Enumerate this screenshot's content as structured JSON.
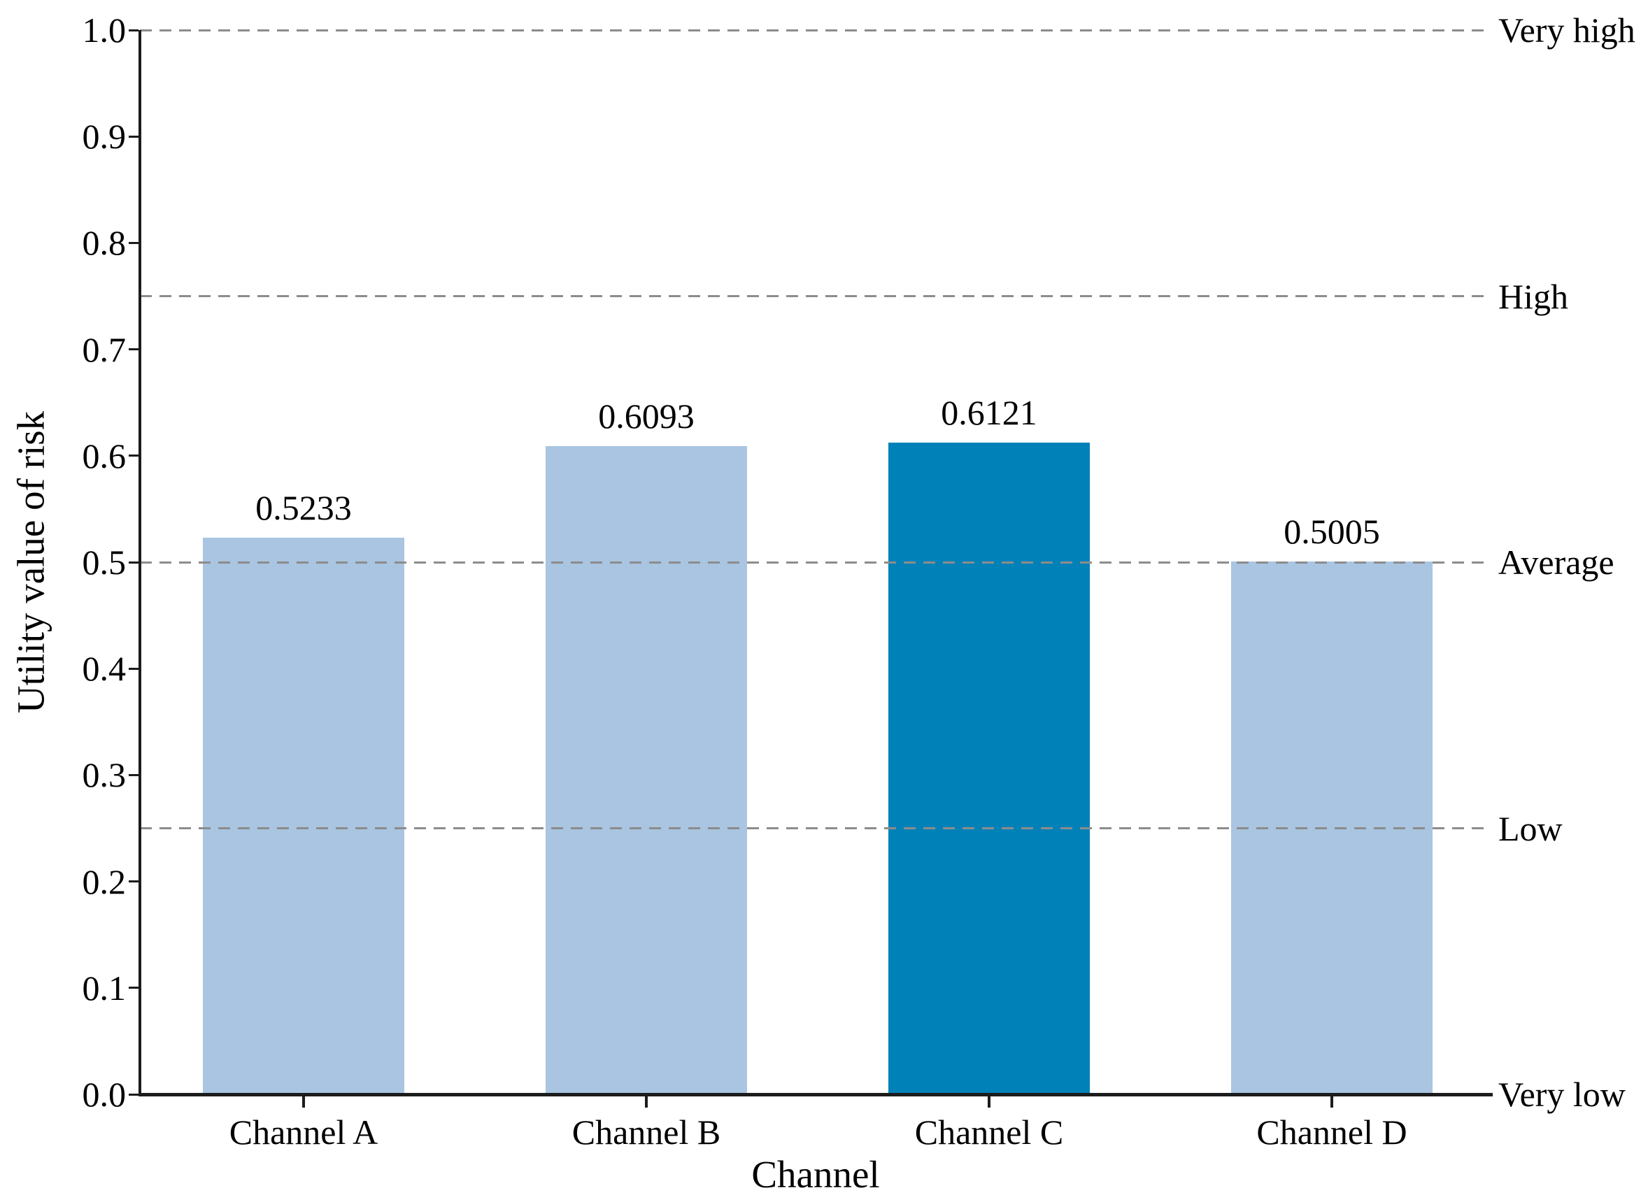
{
  "chart_data": {
    "type": "bar",
    "title": "",
    "xlabel": "Channel",
    "ylabel": "Utility value of risk",
    "categories": [
      "Channel A",
      "Channel B",
      "Channel C",
      "Channel D"
    ],
    "values": [
      0.5233,
      0.6093,
      0.6121,
      0.5005
    ],
    "value_labels": [
      "0.5233",
      "0.6093",
      "0.6121",
      "0.5005"
    ],
    "bar_colors": [
      "#a9c5e1",
      "#a9c5e1",
      "#0081b8",
      "#a9c5e1"
    ],
    "highlighted_category": "Channel C",
    "ylim": [
      0.0,
      1.0
    ],
    "ytick_labels": [
      "0.0",
      "0.1",
      "0.2",
      "0.3",
      "0.4",
      "0.5",
      "0.6",
      "0.7",
      "0.8",
      "0.9",
      "1.0"
    ],
    "grid": "horizontal dashed reference lines only",
    "legend": null,
    "reference_lines": [
      {
        "value": 1.0,
        "label": "Very high",
        "style": "dashed"
      },
      {
        "value": 0.75,
        "label": "High",
        "style": "dashed"
      },
      {
        "value": 0.5,
        "label": "Average",
        "style": "dashed"
      },
      {
        "value": 0.25,
        "label": "Low",
        "style": "dashed"
      },
      {
        "value": 0.0,
        "label": "Very low",
        "style": "solid-axis"
      }
    ],
    "colors": {
      "bar_light": "#a9c5e1",
      "bar_highlight": "#0081b8",
      "dashed_line": "#8c8c8c",
      "axis": "#1c1c1c",
      "text": "#000000"
    }
  }
}
